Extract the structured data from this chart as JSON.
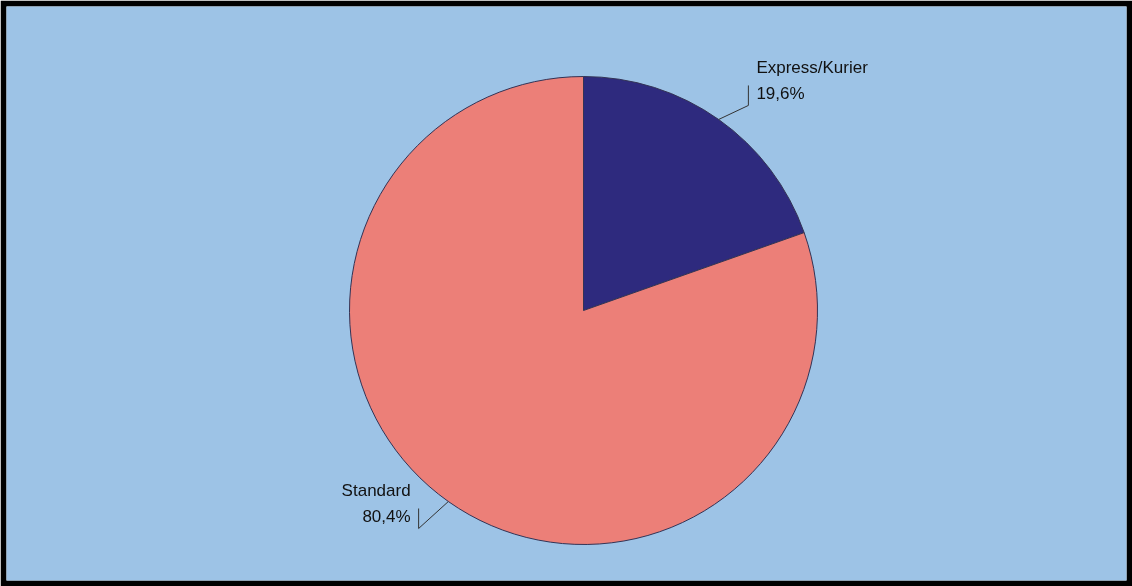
{
  "chart_data": {
    "type": "pie",
    "categories": [
      "Express/Kurier",
      "Standard"
    ],
    "values": [
      19.6,
      80.4
    ],
    "colors": [
      "#2e2a7e",
      "#ec7f78"
    ],
    "value_labels": [
      "19,6%",
      "80,4%"
    ]
  }
}
